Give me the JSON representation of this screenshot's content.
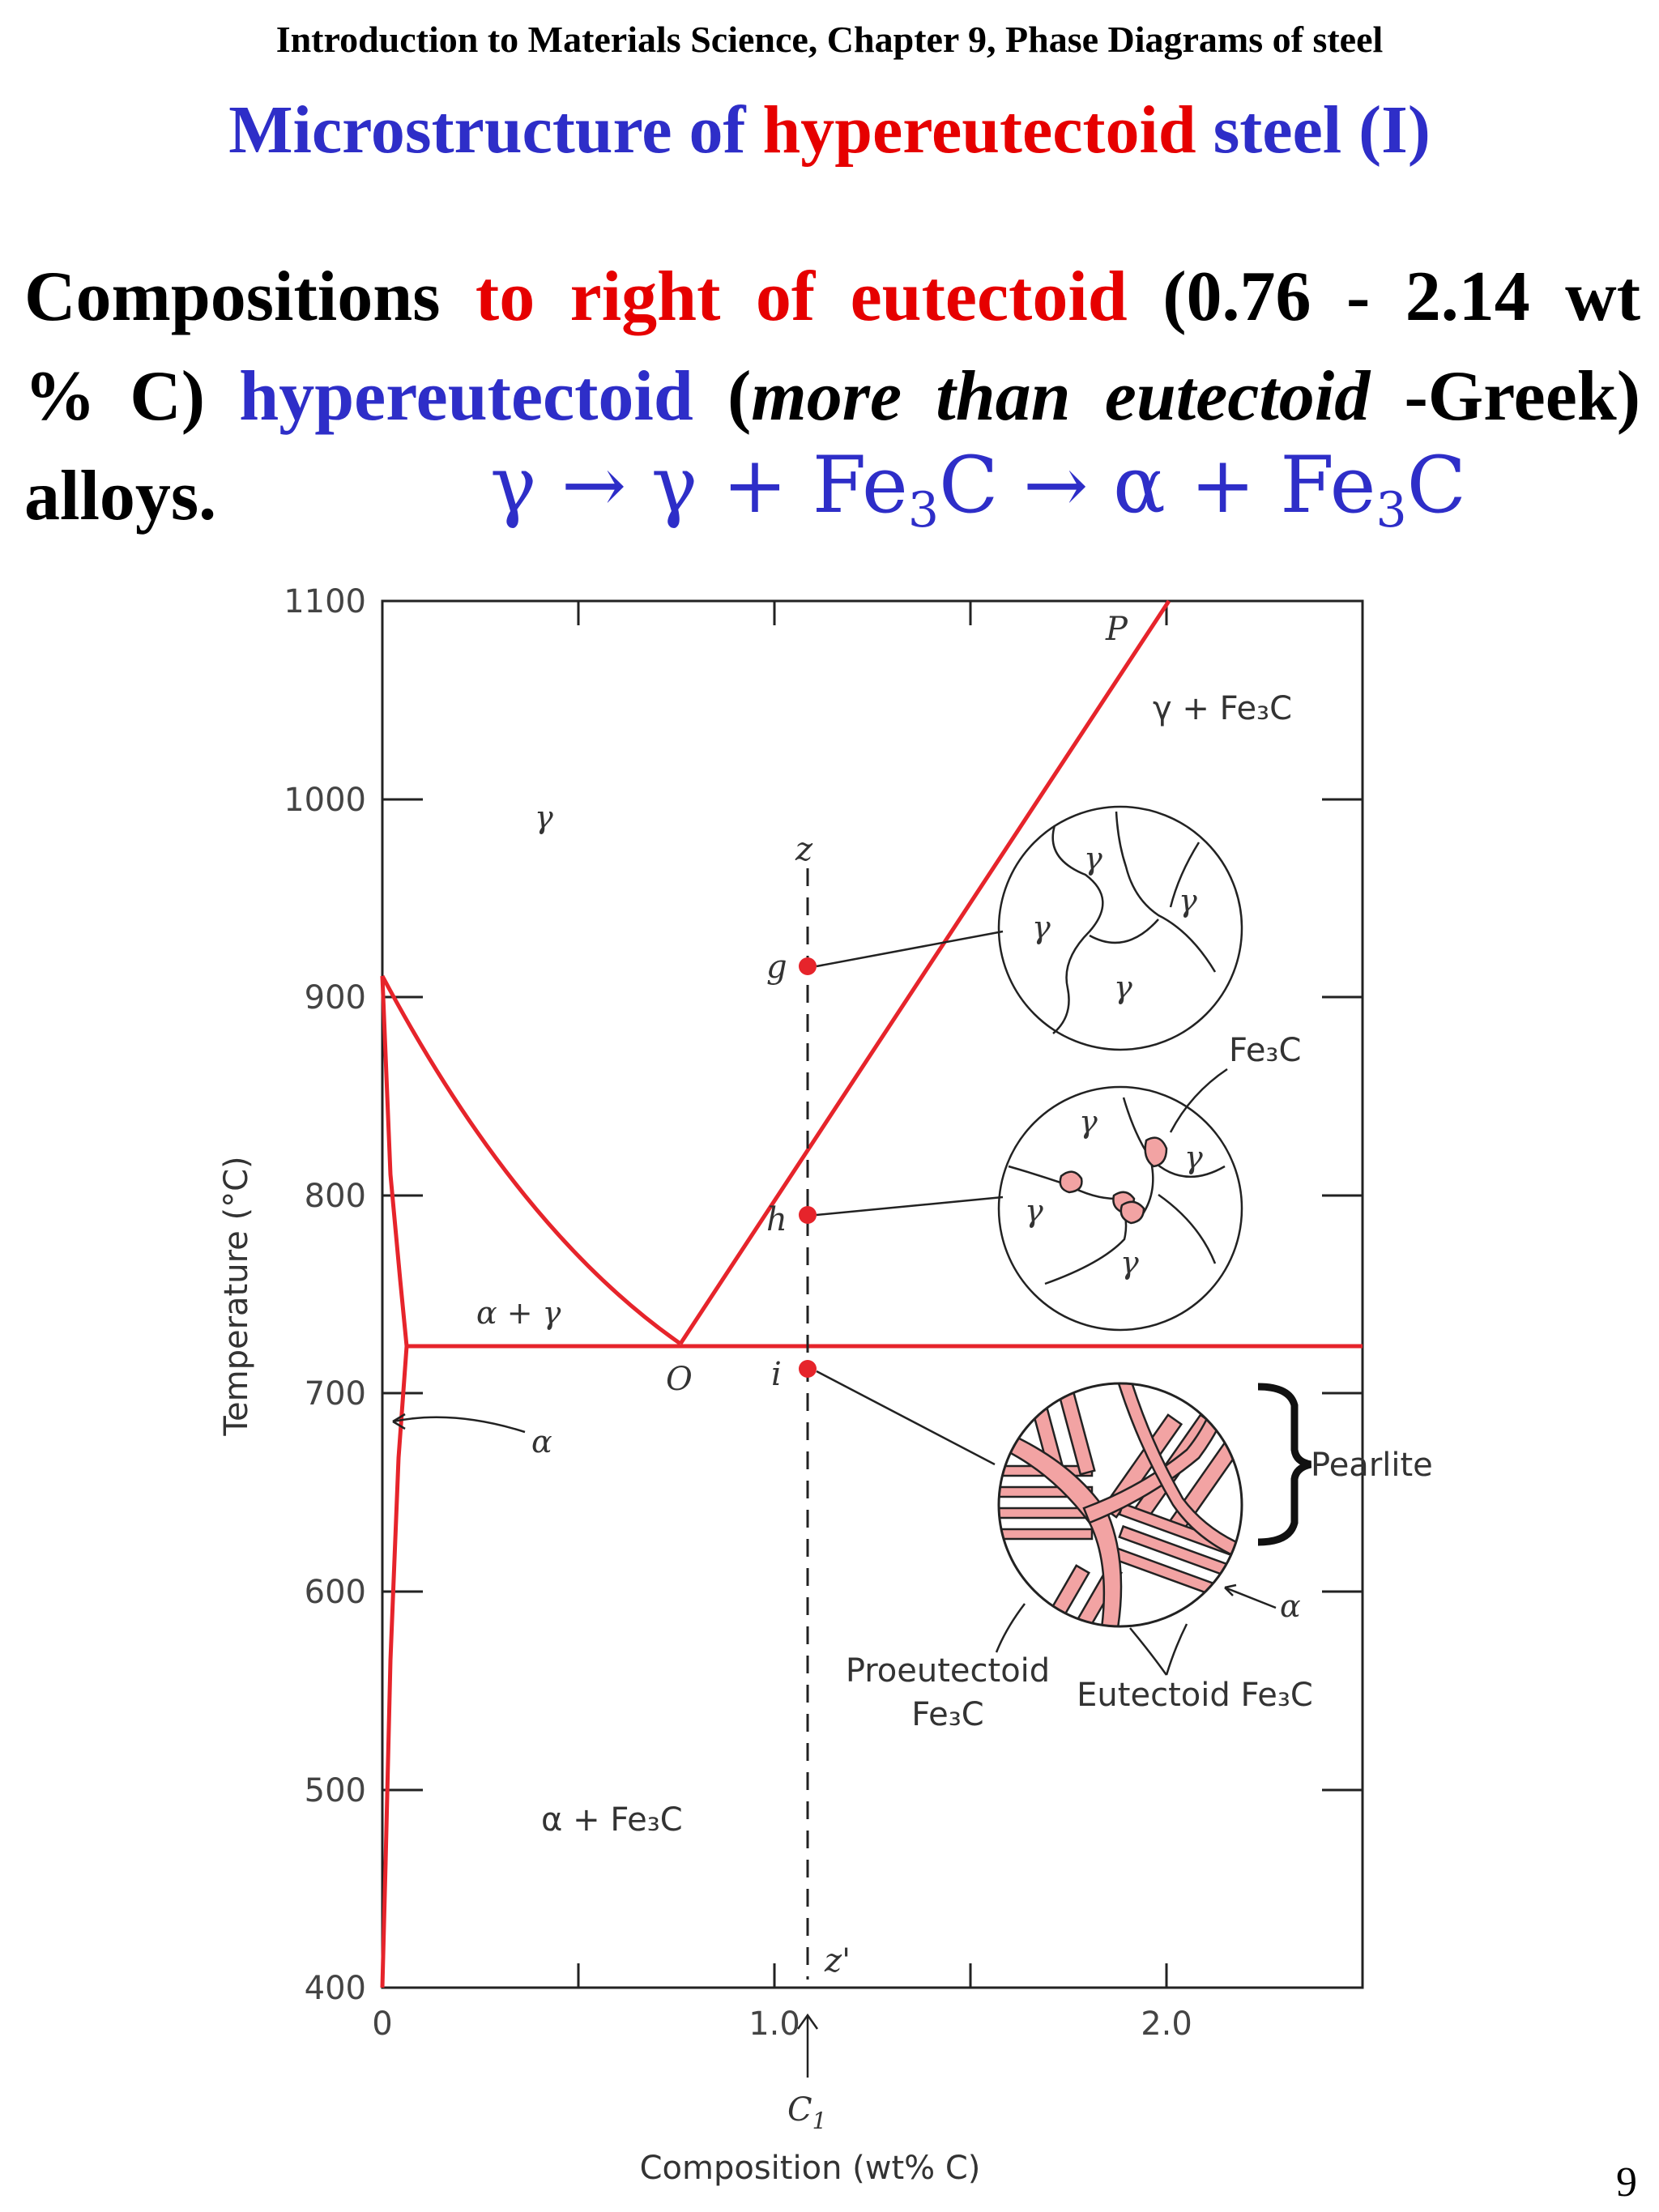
{
  "header": {
    "course": "Introduction to Materials Science, Chapter 9, Phase Diagrams of steel",
    "title_pre": "Microstructure of ",
    "title_red": "hypereutectoid",
    "title_post": " steel (I)"
  },
  "body": {
    "w1": "Compositions",
    "red": "to right of eutectoid",
    "w2": "(0.76 - 2.14 wt",
    "w3": "% C)",
    "blue": "hypereutectoid",
    "w4": "(",
    "ital": "more than eutectoid",
    "w5": "-Greek)",
    "w6": "alloys."
  },
  "reaction": {
    "a": "γ →  γ + Fe",
    "sub1": "3",
    "b": "C →  α + Fe",
    "sub2": "3",
    "c": "C"
  },
  "page_number": "9",
  "diagram": {
    "y_axis_label": "Temperature (°C)",
    "x_axis_label": "Composition (wt% C)",
    "y_ticks": [
      "1100",
      "1000",
      "900",
      "800",
      "700",
      "600",
      "500",
      "400"
    ],
    "x_ticks": [
      "0",
      "1.0",
      "2.0"
    ],
    "regions": {
      "gamma": "γ",
      "gamma_fe3c": "γ + Fe₃C",
      "alpha_gamma": "α + γ",
      "alpha": "α",
      "alpha_fe3c": "α + Fe₃C"
    },
    "points": {
      "P": "P",
      "O": "O",
      "g": "g",
      "h": "h",
      "i": "i",
      "z": "z",
      "z_prime": "z'",
      "c1": "C",
      "c1_sub": "1"
    },
    "micro": {
      "gamma": "γ",
      "fe3c": "Fe₃C",
      "pearlite": "Pearlite",
      "alpha": "α",
      "proeutectoid_1": "Proeutectoid",
      "proeutectoid_2": "Fe₃C",
      "eutectoid": "Eutectoid Fe₃C"
    },
    "colors": {
      "phase_line": "#e6242b",
      "cementite_fill": "#f2a3a3",
      "title_blue": "#2e2ec8",
      "accent_red": "#e60000"
    }
  }
}
